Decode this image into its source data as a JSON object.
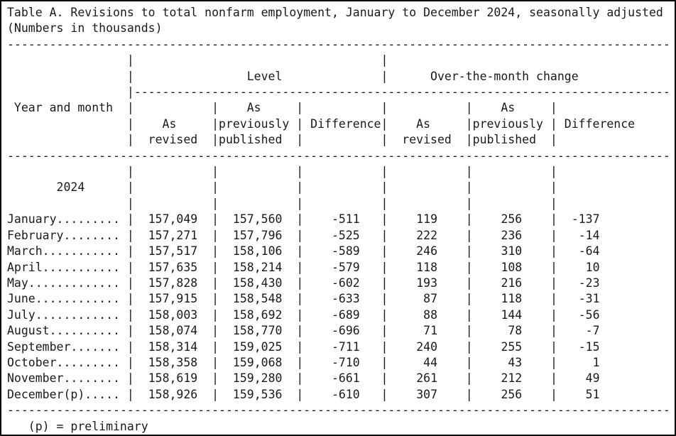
{
  "page": {
    "title": "Table A. Revisions to total nonfarm employment, January to December 2024, seasonally adjusted",
    "subtitle": "(Numbers in thousands)",
    "footnote": "(p) = preliminary",
    "text_color": "#1a1a1a",
    "background_color": "#ffffff"
  },
  "table": {
    "row_header": "Year and month",
    "group_headers": {
      "level": "Level",
      "otm": "Over-the-month change"
    },
    "sub_headers": {
      "as_label": "As",
      "revised_label": "revised",
      "previously_label": "previously",
      "published_label": "published",
      "difference_label": "Difference"
    },
    "column_names": [
      "As revised",
      "As previously published",
      "Difference",
      "As revised",
      "As previously published",
      "Difference"
    ],
    "year_label": "2024",
    "rows": [
      {
        "label": "January.........",
        "values": [
          "157,049",
          "157,560",
          "-511",
          "119",
          "256",
          "-137"
        ]
      },
      {
        "label": "February........",
        "values": [
          "157,271",
          "157,796",
          "-525",
          "222",
          "236",
          "-14"
        ]
      },
      {
        "label": "March...........",
        "values": [
          "157,517",
          "158,106",
          "-589",
          "246",
          "310",
          "-64"
        ]
      },
      {
        "label": "April...........",
        "values": [
          "157,635",
          "158,214",
          "-579",
          "118",
          "108",
          "10"
        ]
      },
      {
        "label": "May.............",
        "values": [
          "157,828",
          "158,430",
          "-602",
          "193",
          "216",
          "-23"
        ]
      },
      {
        "label": "June............",
        "values": [
          "157,915",
          "158,548",
          "-633",
          "87",
          "118",
          "-31"
        ]
      },
      {
        "label": "July............",
        "values": [
          "158,003",
          "158,692",
          "-689",
          "88",
          "144",
          "-56"
        ]
      },
      {
        "label": "August..........",
        "values": [
          "158,074",
          "158,770",
          "-696",
          "71",
          "78",
          "-7"
        ]
      },
      {
        "label": "September.......",
        "values": [
          "158,314",
          "159,025",
          "-711",
          "240",
          "255",
          "-15"
        ]
      },
      {
        "label": "October.........",
        "values": [
          "158,358",
          "159,068",
          "-710",
          "44",
          "43",
          "1"
        ]
      },
      {
        "label": "November........",
        "values": [
          "158,619",
          "159,280",
          "-661",
          "261",
          "212",
          "49"
        ]
      },
      {
        "label": "December(p).....",
        "values": [
          "158,926",
          "159,536",
          "-610",
          "307",
          "256",
          "51"
        ]
      }
    ]
  }
}
